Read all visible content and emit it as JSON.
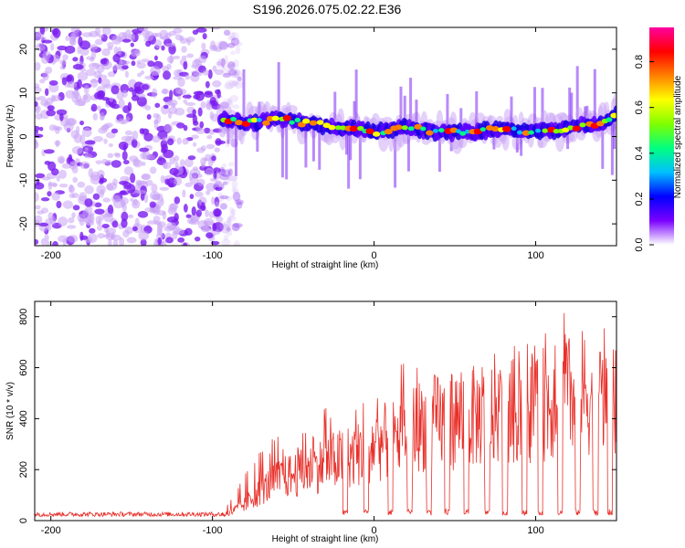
{
  "title": "S196.2026.075.02.22.E36",
  "chart_data": [
    {
      "type": "heatmap",
      "name": "spectrogram",
      "xlabel": "Height of straight line (km)",
      "ylabel": "Frequency (Hz)",
      "xlim": [
        -210,
        150
      ],
      "ylim": [
        -25,
        25
      ],
      "xticks": [
        -200,
        -100,
        0,
        100
      ],
      "yticks": [
        -20,
        -10,
        0,
        10,
        20
      ],
      "noise_region_x": [
        -210,
        -95
      ],
      "signal_track": {
        "x": [
          -95,
          -80,
          -60,
          -40,
          -20,
          0,
          20,
          40,
          60,
          80,
          100,
          120,
          140,
          150
        ],
        "frequency_hz": [
          4,
          3,
          4,
          3,
          2,
          1,
          2,
          1,
          1,
          2,
          1,
          2,
          3,
          5
        ]
      },
      "colorbar": {
        "label": "Normalized spectral amplitude",
        "range": [
          0.0,
          0.95
        ],
        "ticks": [
          "0.0",
          "0.2",
          "0.4",
          "0.6",
          "0.8"
        ],
        "colormap": [
          "#ffffff",
          "#7a00ff",
          "#0000ff",
          "#00c0ff",
          "#00ff80",
          "#80ff00",
          "#ffff00",
          "#ff8000",
          "#ff0000",
          "#ff00a0"
        ]
      }
    },
    {
      "type": "line",
      "name": "snr",
      "xlabel": "Height of straight line (km)",
      "ylabel": "SNR (10 * v/v)",
      "xlim": [
        -210,
        150
      ],
      "ylim": [
        0,
        860
      ],
      "xticks": [
        -200,
        -100,
        0,
        100
      ],
      "yticks": [
        0,
        200,
        400,
        600,
        800
      ],
      "color": "#e8302a",
      "envelope": {
        "x": [
          -210,
          -100,
          -90,
          -80,
          -70,
          -60,
          -50,
          -40,
          -30,
          -20,
          -10,
          0,
          10,
          20,
          30,
          40,
          50,
          60,
          70,
          80,
          90,
          100,
          110,
          120,
          130,
          140,
          150
        ],
        "mean": [
          22,
          22,
          30,
          70,
          130,
          180,
          200,
          220,
          250,
          270,
          290,
          330,
          350,
          390,
          420,
          430,
          440,
          450,
          460,
          470,
          480,
          500,
          520,
          540,
          560,
          520,
          500
        ],
        "peak": [
          38,
          40,
          80,
          180,
          300,
          330,
          340,
          380,
          460,
          470,
          520,
          560,
          590,
          640,
          640,
          650,
          620,
          630,
          650,
          660,
          700,
          760,
          850,
          840,
          800,
          760,
          800
        ]
      },
      "dropouts_x": [
        -18,
        -5,
        10,
        22,
        34,
        45,
        57,
        70,
        81,
        93,
        103,
        115,
        126,
        137,
        146
      ]
    }
  ]
}
